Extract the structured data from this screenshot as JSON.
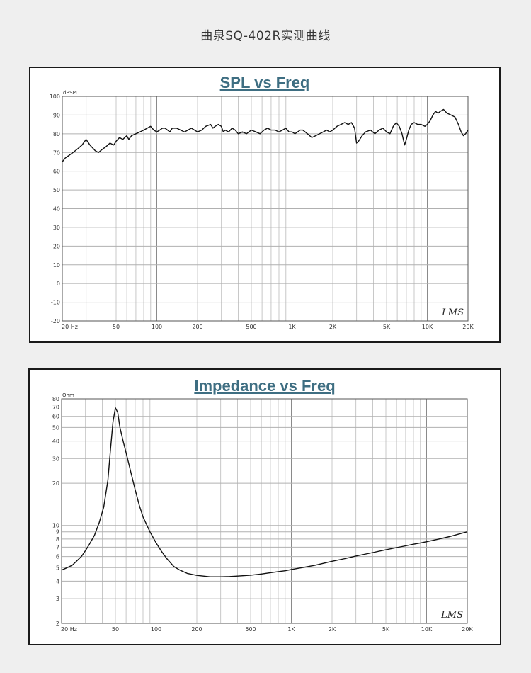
{
  "page_title": "曲泉SQ-402R实测曲线",
  "watermark": "LMS",
  "chart_data": [
    {
      "type": "line",
      "title": "SPL vs Freq",
      "xlabel": "",
      "ylabel": "dBSPL",
      "x_scale": "log",
      "xlim": [
        20,
        20000
      ],
      "ylim": [
        -20,
        100
      ],
      "grid": true,
      "x_tick_labels": [
        "20 Hz",
        "50",
        "100",
        "200",
        "500",
        "1K",
        "2K",
        "5K",
        "10K",
        "20K"
      ],
      "x_tick_values": [
        20,
        50,
        100,
        200,
        500,
        1000,
        2000,
        5000,
        10000,
        20000
      ],
      "y_tick_labels": [
        "100",
        "90",
        "80",
        "70",
        "60",
        "50",
        "40",
        "30",
        "20",
        "10",
        "0",
        "-10",
        "-20"
      ],
      "y_tick_values": [
        100,
        90,
        80,
        70,
        60,
        50,
        40,
        30,
        20,
        10,
        0,
        -10,
        -20
      ],
      "series": [
        {
          "x": [
            20,
            21,
            22,
            24,
            26,
            28,
            30,
            32,
            34,
            35,
            37,
            40,
            42,
            45,
            48,
            50,
            53,
            56,
            60,
            62,
            65,
            70,
            75,
            80,
            85,
            90,
            95,
            100,
            105,
            110,
            115,
            120,
            125,
            130,
            140,
            150,
            160,
            170,
            180,
            190,
            200,
            215,
            230,
            250,
            260,
            270,
            285,
            300,
            310,
            320,
            340,
            360,
            380,
            400,
            430,
            460,
            500,
            540,
            580,
            620,
            660,
            700,
            750,
            800,
            850,
            900,
            950,
            1000,
            1050,
            1100,
            1150,
            1200,
            1300,
            1400,
            1500,
            1600,
            1700,
            1800,
            1900,
            2000,
            2150,
            2300,
            2450,
            2600,
            2750,
            2900,
            3000,
            3100,
            3300,
            3500,
            3800,
            4100,
            4400,
            4700,
            5000,
            5300,
            5600,
            5900,
            6200,
            6500,
            6800,
            7000,
            7300,
            7600,
            8000,
            8500,
            9000,
            9600,
            10000,
            10500,
            11000,
            11500,
            12000,
            12500,
            13200,
            14000,
            15000,
            16000,
            17000,
            17800,
            18500,
            19200,
            20000
          ],
          "y": [
            65,
            67,
            68,
            70,
            72,
            74,
            77,
            74,
            72,
            71,
            70,
            72,
            73,
            75,
            74,
            76,
            78,
            77,
            79,
            77,
            79,
            80,
            81,
            82,
            83,
            84,
            82,
            81,
            82,
            83,
            83,
            82,
            81,
            83,
            83,
            82,
            81,
            82,
            83,
            82,
            81,
            82,
            84,
            85,
            83,
            84,
            85,
            84,
            81,
            82,
            81,
            83,
            82,
            80,
            81,
            80,
            82,
            81,
            80,
            82,
            83,
            82,
            82,
            81,
            82,
            83,
            81,
            81,
            80,
            81,
            82,
            82,
            80,
            78,
            79,
            80,
            81,
            82,
            81,
            82,
            84,
            85,
            86,
            85,
            86,
            83,
            75,
            76,
            79,
            81,
            82,
            80,
            82,
            83,
            81,
            80,
            84,
            86,
            84,
            80,
            74,
            77,
            82,
            85,
            86,
            85,
            85,
            84,
            85,
            87,
            90,
            92,
            91,
            92,
            93,
            91,
            90,
            89,
            85,
            81,
            79,
            80,
            82
          ]
        }
      ]
    },
    {
      "type": "line",
      "title": "Impedance vs Freq",
      "xlabel": "",
      "ylabel": "Ohm",
      "x_scale": "log",
      "y_scale": "log",
      "xlim": [
        20,
        20000
      ],
      "ylim": [
        2,
        80
      ],
      "grid": true,
      "x_tick_labels": [
        "20 Hz",
        "50",
        "100",
        "200",
        "500",
        "1K",
        "2K",
        "5K",
        "10K",
        "20K"
      ],
      "x_tick_values": [
        20,
        50,
        100,
        200,
        500,
        1000,
        2000,
        5000,
        10000,
        20000
      ],
      "y_tick_labels": [
        "80",
        "70",
        "60",
        "50",
        "40",
        "30",
        "20",
        "10",
        "9",
        "8",
        "7",
        "6",
        "5",
        "4",
        "3",
        "2"
      ],
      "y_tick_values": [
        80,
        70,
        60,
        50,
        40,
        30,
        20,
        10,
        9,
        8,
        7,
        6,
        5,
        4,
        3,
        2
      ],
      "series": [
        {
          "x": [
            20,
            22,
            24,
            26,
            28,
            30,
            32,
            35,
            38,
            41,
            44,
            46,
            48,
            50,
            52,
            54,
            57,
            60,
            65,
            70,
            75,
            80,
            90,
            100,
            110,
            120,
            135,
            150,
            170,
            200,
            250,
            300,
            350,
            400,
            500,
            600,
            700,
            800,
            900,
            1000,
            1200,
            1500,
            2000,
            2500,
            3000,
            4000,
            5000,
            6000,
            7000,
            8000,
            9000,
            10000,
            12000,
            15000,
            20000
          ],
          "y": [
            4.8,
            5.0,
            5.2,
            5.6,
            6.0,
            6.6,
            7.3,
            8.5,
            10.5,
            13.5,
            21.0,
            35.0,
            55.0,
            69.0,
            64.0,
            50.0,
            40.0,
            33.0,
            24.0,
            18.0,
            14.0,
            11.5,
            9.0,
            7.5,
            6.5,
            5.8,
            5.1,
            4.8,
            4.55,
            4.4,
            4.3,
            4.3,
            4.32,
            4.35,
            4.42,
            4.5,
            4.6,
            4.68,
            4.75,
            4.85,
            5.0,
            5.2,
            5.55,
            5.8,
            6.05,
            6.4,
            6.7,
            6.95,
            7.15,
            7.35,
            7.5,
            7.65,
            7.95,
            8.35,
            9.0
          ]
        }
      ]
    }
  ]
}
